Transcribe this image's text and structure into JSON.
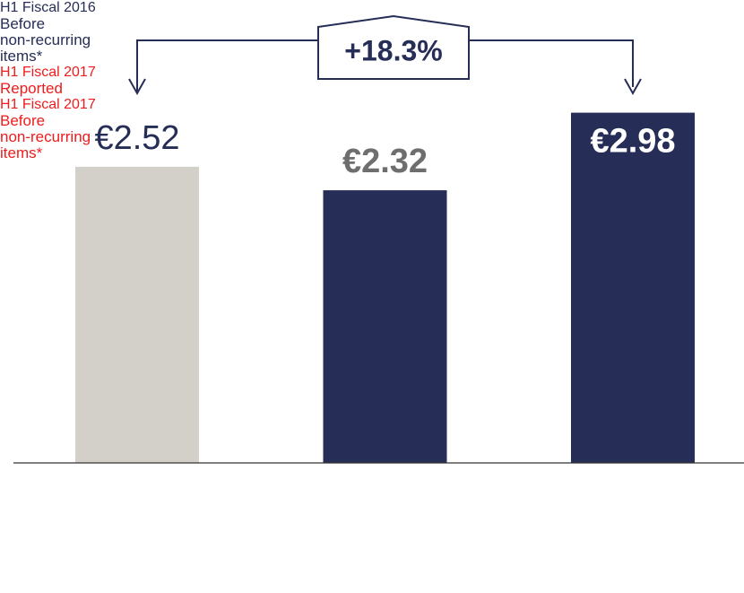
{
  "chart_data": {
    "type": "bar",
    "categories": [
      "H1 Fiscal 2016",
      "H1 Fiscal 2017",
      "H1 Fiscal 2017"
    ],
    "category_notes": [
      [
        "Before",
        "non-recurring",
        "items*"
      ],
      [
        "Reported"
      ],
      [
        "Before",
        "non-recurring",
        "items*"
      ]
    ],
    "category_colors": [
      "#262d56",
      "#ee1c1c",
      "#ee1c1c"
    ],
    "values": [
      2.52,
      2.32,
      2.98
    ],
    "value_labels": [
      "€2.52",
      "€2.32",
      "€2.98"
    ],
    "colors": [
      "#d3d0c9",
      "#262d56",
      "#262d56"
    ],
    "value_label_colors": [
      "#262d56",
      "#6e6e6e",
      "#ffffff"
    ],
    "value_label_bold": [
      false,
      true,
      true
    ],
    "value_label_position": [
      "above",
      "above",
      "inside"
    ],
    "ylim": [
      0,
      3
    ],
    "annotation": "+18.3%"
  }
}
